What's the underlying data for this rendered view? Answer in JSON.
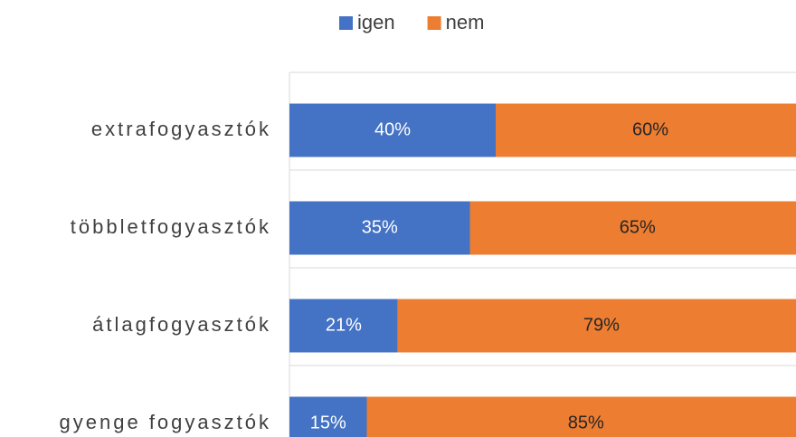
{
  "chart_data": {
    "type": "stacked-bar-horizontal",
    "categories": [
      "extrafogyasztók",
      "többletfogyasztók",
      "átlagfogyasztók",
      "gyenge fogyasztók"
    ],
    "series": [
      {
        "name": "igen",
        "color": "#4472c4",
        "values": [
          40,
          35,
          21,
          15
        ],
        "value_labels": [
          "40%",
          "35%",
          "21%",
          "15%"
        ]
      },
      {
        "name": "nem",
        "color": "#ed7d31",
        "values": [
          60,
          65,
          79,
          85
        ],
        "value_labels": [
          "60%",
          "65%",
          "79%",
          "85%"
        ]
      }
    ],
    "legend": "top"
  }
}
